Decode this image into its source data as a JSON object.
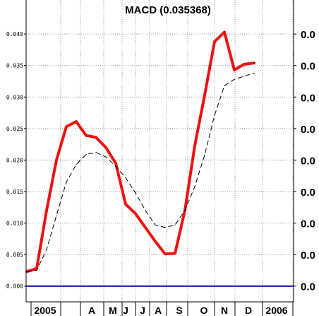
{
  "chart_data": {
    "type": "line",
    "title": "MACD (0.035368)",
    "ylim": [
      -0.0025,
      0.0445
    ],
    "y_ticks": [
      "0.000",
      "0.005",
      "0.010",
      "0.015",
      "0.020",
      "0.025",
      "0.030",
      "0.035",
      "0.040"
    ],
    "y_tick_values": [
      0.0,
      0.005,
      0.01,
      0.015,
      0.02,
      0.025,
      0.03,
      0.035,
      0.04
    ],
    "right_tick_labels": [
      "0.0",
      "0.0",
      "0.0",
      "0.0",
      "0.0",
      "0.0",
      "0.0",
      "0.0",
      "0.0"
    ],
    "x_labels": [
      "2005",
      "A",
      "M",
      "J",
      "J",
      "A",
      "S",
      "O",
      "N",
      "D",
      "2006"
    ],
    "x_grid": true,
    "y_grid": true,
    "colors": {
      "macd": "#ee1111",
      "signal": "#000000",
      "zero_line": "#0000cc",
      "grid": "#999999"
    },
    "series": [
      {
        "role": "macd",
        "x": [
          0,
          2,
          4,
          6,
          8,
          10,
          12,
          14,
          16,
          18,
          20,
          22,
          24,
          26,
          28,
          30,
          32,
          34,
          36,
          38,
          40,
          42,
          44,
          46
        ],
        "values": [
          0.0023,
          0.0028,
          0.012,
          0.02,
          0.0253,
          0.0261,
          0.0239,
          0.0236,
          0.022,
          0.0195,
          0.013,
          0.0115,
          0.0093,
          0.0071,
          0.0051,
          0.0052,
          0.012,
          0.0223,
          0.0303,
          0.0388,
          0.0403,
          0.0343,
          0.0352,
          0.0354
        ]
      },
      {
        "role": "signal",
        "x": [
          0,
          2,
          4,
          6,
          8,
          10,
          12,
          14,
          16,
          18,
          20,
          22,
          24,
          26,
          28,
          30,
          32,
          34,
          36,
          38,
          40,
          42,
          44,
          46
        ],
        "values": [
          0.0023,
          0.0025,
          0.0058,
          0.0112,
          0.0165,
          0.0193,
          0.0209,
          0.0212,
          0.0205,
          0.019,
          0.0172,
          0.0148,
          0.012,
          0.0097,
          0.0093,
          0.0097,
          0.012,
          0.0158,
          0.0208,
          0.0271,
          0.0318,
          0.0328,
          0.0333,
          0.0338
        ]
      }
    ]
  }
}
